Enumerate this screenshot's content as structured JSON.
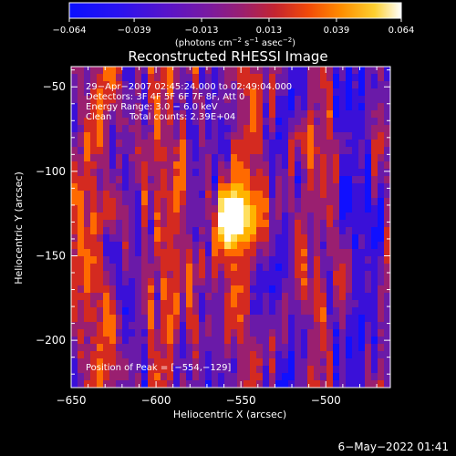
{
  "chart_data": {
    "type": "heatmap",
    "title": "Reconstructed RHESSI Image",
    "xlabel": "Heliocentric X (arcsec)",
    "ylabel": "Heliocentric Y (arcsec)",
    "xlim": [
      -650,
      -462
    ],
    "ylim": [
      -228,
      -38
    ],
    "x_ticks": [
      -650,
      -600,
      -550,
      -500
    ],
    "x_tick_labels": [
      "−650",
      "−600",
      "−550",
      "−500"
    ],
    "y_ticks": [
      -50,
      -100,
      -150,
      -200
    ],
    "y_tick_labels": [
      "−50",
      "−100",
      "−150",
      "−200"
    ],
    "colorbar": {
      "range": [
        -0.064,
        0.064
      ],
      "ticks": [
        -0.064,
        -0.039,
        -0.013,
        0.013,
        0.039,
        0.064
      ],
      "tick_labels": [
        "−0.064",
        "−0.039",
        "−0.013",
        "0.013",
        "0.039",
        "0.064"
      ],
      "units_text": "(photons cm",
      "units_exp1": "−2",
      "units_mid": " s",
      "units_exp2": "−1",
      "units_mid2": " asec",
      "units_exp3": "−2",
      "units_end": ")"
    },
    "annotations": [
      "29−Apr−2007 02:45:24.000 to 02:49:04.000",
      "Detectors: 3F 4F 5F 6F 7F 8F, Att 0",
      "Energy Range: 3.0 − 6.0 keV",
      "Clean",
      "Total counts: 2.39E+04"
    ],
    "peak_label": "Position of Peak = [−554,−129]",
    "peak": [
      -554,
      -129
    ],
    "timestamp": "6−May−2022 01:41",
    "colors": {
      "background": "#000000",
      "text": "#ffffff",
      "colormap": [
        "#1010ff",
        "#3a10d8",
        "#6a1aa8",
        "#9a1f70",
        "#d42a20",
        "#ff6a00",
        "#ffb400",
        "#ffe060",
        "#ffffff"
      ]
    }
  }
}
